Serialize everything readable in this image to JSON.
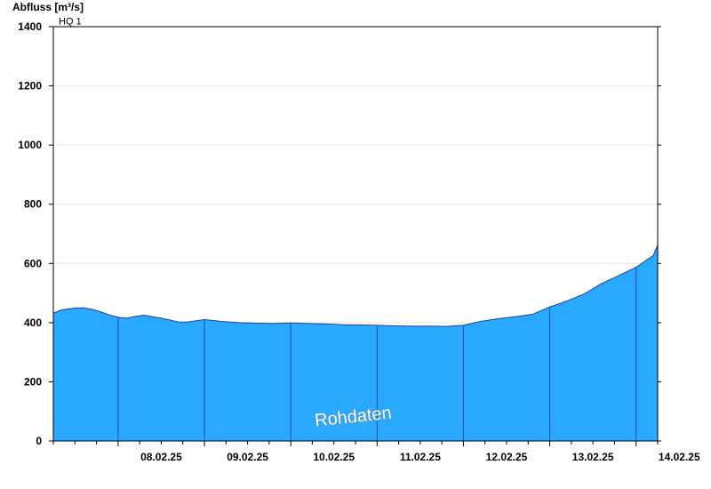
{
  "chart_data": {
    "type": "area",
    "ylabel": "Abfluss [m³/s]",
    "ylim": [
      0,
      1400
    ],
    "yticks": [
      0,
      200,
      400,
      600,
      800,
      1000,
      1200,
      1400
    ],
    "xlabels": [
      "08.02.25",
      "09.02.25",
      "10.02.25",
      "11.02.25",
      "12.02.25",
      "13.02.25",
      "14.02.25"
    ],
    "xlim_days": [
      7.25,
      14.25
    ],
    "x_unit": "day of February 2025",
    "threshold": {
      "label": "HQ 1",
      "value": 1400
    },
    "watermark": "Rohdaten",
    "grid": true,
    "series": [
      {
        "color": "#29a9ff",
        "x": [
          7.25,
          7.35,
          7.5,
          7.6,
          7.7,
          7.8,
          7.9,
          8.0,
          8.1,
          8.2,
          8.3,
          8.4,
          8.5,
          8.6,
          8.7,
          8.8,
          9.0,
          9.2,
          9.4,
          9.6,
          9.8,
          10.0,
          10.2,
          10.4,
          10.6,
          10.8,
          11.0,
          11.2,
          11.4,
          11.6,
          11.8,
          12.0,
          12.2,
          12.4,
          12.6,
          12.8,
          13.0,
          13.2,
          13.4,
          13.6,
          13.8,
          14.0,
          14.2,
          14.25
        ],
        "y": [
          432,
          443,
          449,
          450,
          445,
          436,
          426,
          418,
          415,
          421,
          425,
          420,
          415,
          409,
          402,
          402,
          410,
          404,
          400,
          398,
          397,
          399,
          397,
          396,
          393,
          392,
          391,
          389,
          388,
          388,
          387,
          391,
          404,
          413,
          420,
          428,
          453,
          473,
          497,
          532,
          559,
          587,
          627,
          663
        ]
      }
    ]
  }
}
